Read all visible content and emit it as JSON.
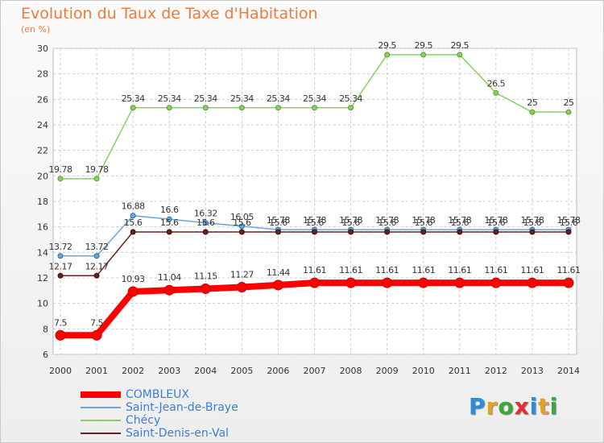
{
  "header": {
    "title": "Evolution du Taux de Taxe d'Habitation",
    "unit": "(en %)"
  },
  "logo": {
    "letters": [
      "P",
      "r",
      "o",
      "x",
      "i",
      "t",
      "i"
    ],
    "colors": [
      "#2a8fd8",
      "#e8a020",
      "#3aa83a",
      "#e03030",
      "#2a8fd8",
      "#e8a020",
      "#3aa83a"
    ]
  },
  "chart_data": {
    "type": "line",
    "x": [
      "2000",
      "2001",
      "2002",
      "2003",
      "2004",
      "2005",
      "2006",
      "2007",
      "2008",
      "2009",
      "2010",
      "2011",
      "2012",
      "2013",
      "2014"
    ],
    "ylim": [
      6,
      30
    ],
    "yticks": [
      6,
      8,
      10,
      12,
      14,
      16,
      18,
      20,
      22,
      24,
      26,
      28,
      30
    ],
    "grid": true,
    "legend_position": "bottom-left",
    "series": [
      {
        "name": "COMBLEUX",
        "color": "#ff0000",
        "values": [
          7.5,
          7.5,
          10.93,
          11.04,
          11.15,
          11.27,
          11.44,
          11.61,
          11.61,
          11.61,
          11.61,
          11.61,
          11.61,
          11.61,
          11.61
        ],
        "labels": [
          "7.5",
          "7.5",
          "10.93",
          "11.04",
          "11.15",
          "11.27",
          "11.44",
          "11.61",
          "11.61",
          "11.61",
          "11.61",
          "11.61",
          "11.61",
          "11.61",
          "11.61"
        ]
      },
      {
        "name": "Saint-Jean-de-Braye",
        "color": "#6aa6d8",
        "values": [
          13.72,
          13.72,
          16.88,
          16.6,
          16.32,
          16.05,
          15.78,
          15.78,
          15.78,
          15.78,
          15.78,
          15.78,
          15.78,
          15.78,
          15.78
        ],
        "labels": [
          "13.72",
          "13.72",
          "16.88",
          "16.6",
          "16.32",
          "16.05",
          "15.78",
          "15.78",
          "15.78",
          "15.78",
          "15.78",
          "15.78",
          "15.78",
          "15.78",
          "15.78"
        ]
      },
      {
        "name": "Chécy",
        "color": "#88d060",
        "values": [
          19.78,
          19.78,
          25.34,
          25.34,
          25.34,
          25.34,
          25.34,
          25.34,
          25.34,
          29.5,
          29.5,
          29.5,
          26.5,
          25,
          25
        ],
        "labels": [
          "19.78",
          "19.78",
          "25.34",
          "25.34",
          "25.34",
          "25.34",
          "25.34",
          "25.34",
          "25.34",
          "29.5",
          "29.5",
          "29.5",
          "26.5",
          "25",
          "25"
        ]
      },
      {
        "name": "Saint-Denis-en-Val",
        "color": "#6a2020",
        "values": [
          12.17,
          12.17,
          15.6,
          15.6,
          15.6,
          15.6,
          15.6,
          15.6,
          15.6,
          15.6,
          15.6,
          15.6,
          15.6,
          15.6,
          15.6
        ],
        "labels": [
          "12.17",
          "12.17",
          "15.6",
          "15.6",
          "15.6",
          "15.6",
          "15.6",
          "15.6",
          "15.6",
          "15.6",
          "15.6",
          "15.6",
          "15.6",
          "15.6",
          "15.6"
        ]
      }
    ]
  }
}
